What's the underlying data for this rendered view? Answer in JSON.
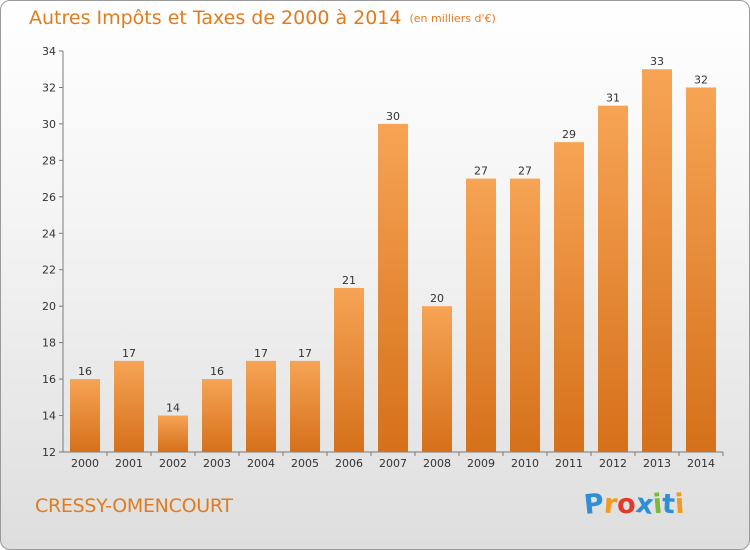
{
  "title": {
    "main": "Autres Impôts et Taxes de 2000 à 2014",
    "unit": "(en milliers d'€)"
  },
  "location": "CRESSY-OMENCOURT",
  "brand": {
    "letters": [
      "P",
      "r",
      "o",
      "x",
      "i",
      "t",
      "i"
    ],
    "letter_colors": [
      "#2e8fd6",
      "#f09a20",
      "#e23a2a",
      "#2e8fd6",
      "#7ab83a",
      "#2e8fd6",
      "#f09a20"
    ]
  },
  "colors": {
    "accent": "#e07b1f",
    "bar_top": "#f6a455",
    "bar_bottom": "#d6701a"
  },
  "chart_data": {
    "type": "bar",
    "categories": [
      "2000",
      "2001",
      "2002",
      "2003",
      "2004",
      "2005",
      "2006",
      "2007",
      "2008",
      "2009",
      "2010",
      "2011",
      "2012",
      "2013",
      "2014"
    ],
    "values": [
      16,
      17,
      14,
      16,
      17,
      17,
      21,
      30,
      20,
      27,
      27,
      29,
      31,
      33,
      32
    ],
    "data_labels": [
      "16",
      "17",
      "14",
      "16",
      "17",
      "17",
      "21",
      "30",
      "20",
      "27",
      "27",
      "29",
      "31",
      "33",
      "32"
    ],
    "yticks": [
      12,
      14,
      16,
      18,
      20,
      22,
      24,
      26,
      28,
      30,
      32,
      34
    ],
    "ylim": [
      12,
      34
    ],
    "grid": false
  }
}
